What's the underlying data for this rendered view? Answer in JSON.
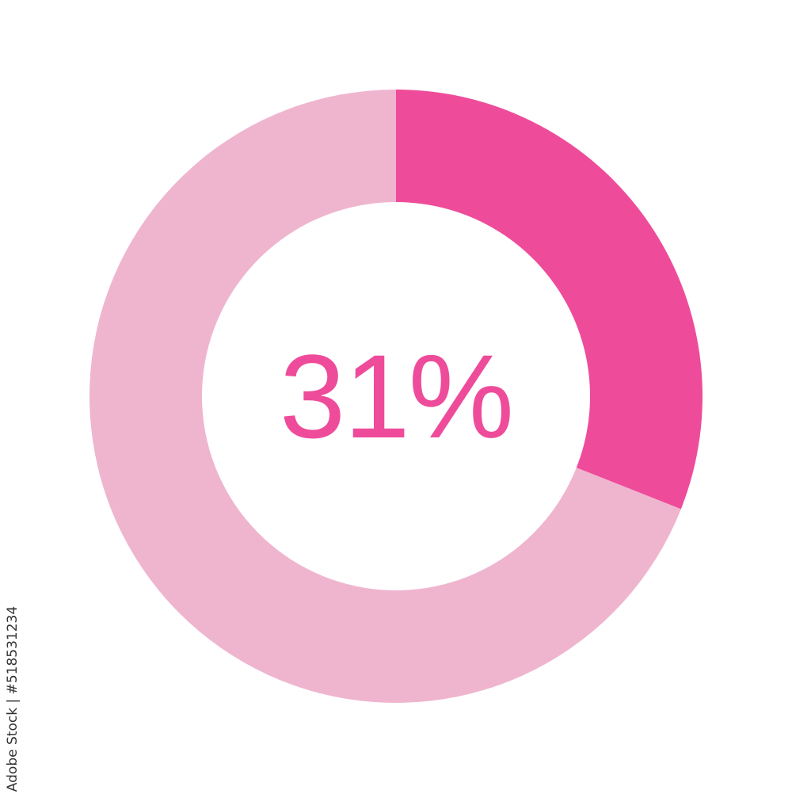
{
  "chart_data": {
    "type": "pie",
    "variant": "donut",
    "values": [
      31,
      69
    ],
    "colors": [
      "#ee4c9a",
      "#efb5cf"
    ],
    "center_label": "31%",
    "start": "top",
    "direction": "clockwise"
  },
  "credit": "Adobe Stock | #518531234"
}
